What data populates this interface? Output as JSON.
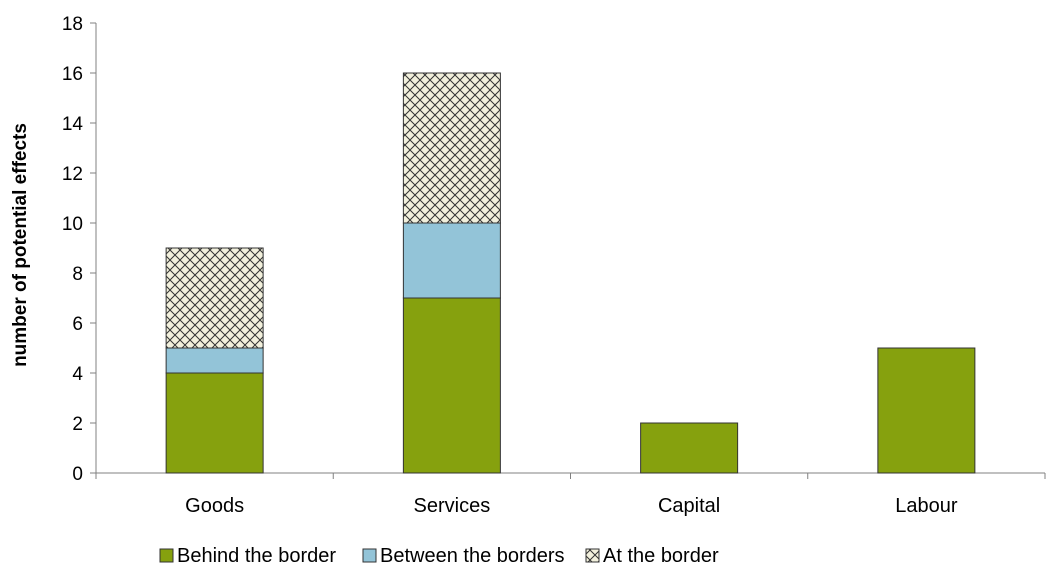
{
  "chart_data": {
    "type": "bar",
    "stacked": true,
    "categories": [
      "Goods",
      "Services",
      "Capital",
      "Labour"
    ],
    "series": [
      {
        "name": "Behind the border",
        "values": [
          4,
          7,
          2,
          5
        ],
        "color": "#86A10E",
        "pattern": "solid"
      },
      {
        "name": "Between the borders",
        "values": [
          1,
          3,
          0,
          0
        ],
        "color": "#93C4D8",
        "pattern": "solid"
      },
      {
        "name": "At the border",
        "values": [
          4,
          6,
          0,
          0
        ],
        "color": "#F2F0DC",
        "pattern": "crosshatch"
      }
    ],
    "title": "",
    "xlabel": "",
    "ylabel": "number of potential effects",
    "ylim": [
      0,
      18
    ],
    "yticks": [
      0,
      2,
      4,
      6,
      8,
      10,
      12,
      14,
      16,
      18
    ],
    "grid": false,
    "legend_position": "bottom"
  }
}
